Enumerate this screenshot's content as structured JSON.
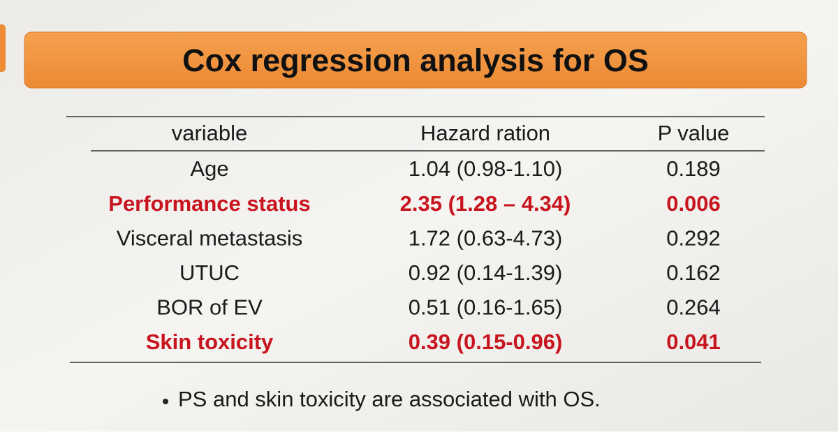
{
  "header": {
    "title": "Cox regression analysis for OS"
  },
  "table": {
    "columns": [
      "variable",
      "Hazard ration",
      "P value"
    ],
    "rows": [
      {
        "cells": [
          "Age",
          "1.04 (0.98-1.10)",
          "0.189"
        ],
        "color": "#1a1a1a",
        "bold": false
      },
      {
        "cells": [
          "Performance status",
          "2.35 (1.28 – 4.34)",
          "0.006"
        ],
        "color": "#c8141e",
        "bold": true
      },
      {
        "cells": [
          "Visceral metastasis",
          "1.72 (0.63-4.73)",
          "0.292"
        ],
        "color": "#1a1a1a",
        "bold": false
      },
      {
        "cells": [
          "UTUC",
          "0.92 (0.14-1.39)",
          "0.162"
        ],
        "color": "#1a1a1a",
        "bold": false
      },
      {
        "cells": [
          "BOR of EV",
          "0.51 (0.16-1.65)",
          "0.264"
        ],
        "color": "#1a1a1a",
        "bold": false
      },
      {
        "cells": [
          "Skin toxicity",
          "0.39 (0.15-0.96)",
          "0.041"
        ],
        "color": "#c8141e",
        "bold": true
      }
    ]
  },
  "note": "PS and skin toxicity are associated with OS."
}
